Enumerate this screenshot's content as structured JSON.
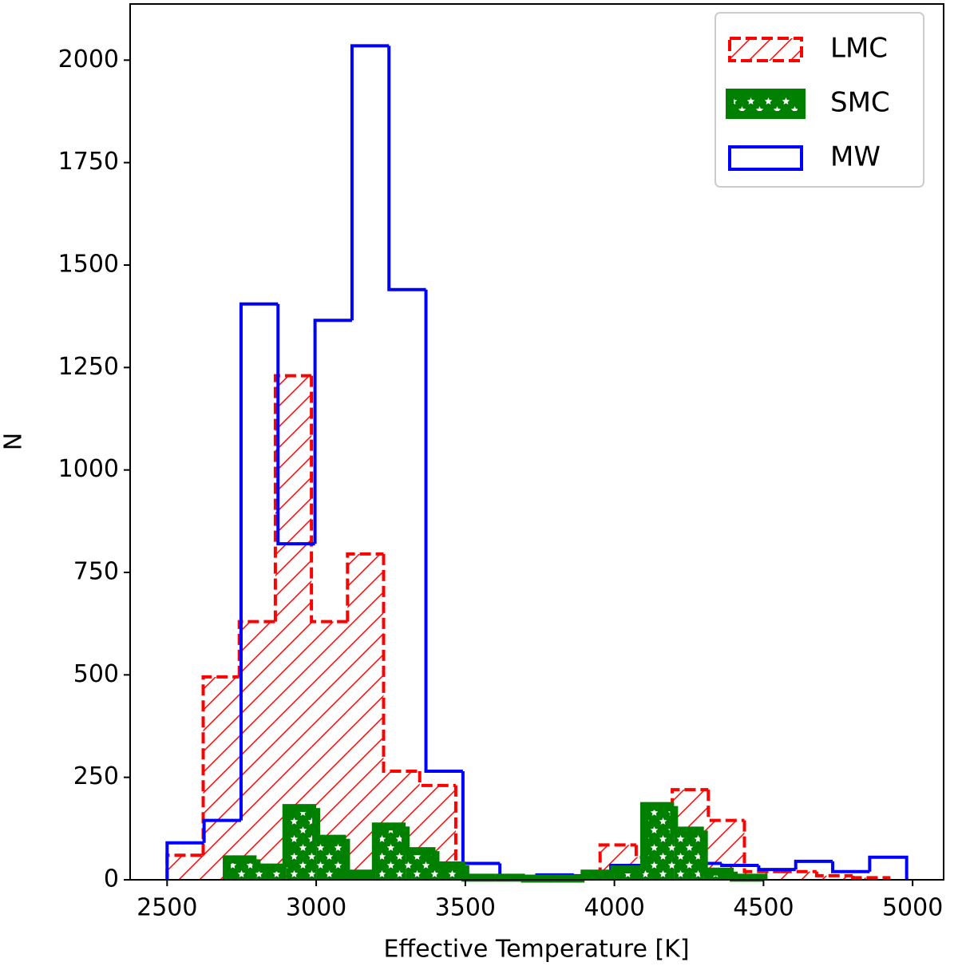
{
  "chart_data": {
    "type": "histogram",
    "xlabel": "Effective Temperature [K]",
    "ylabel": "N",
    "xlim": [
      2376,
      5104
    ],
    "ylim": [
      0,
      2137
    ],
    "xticks": [
      2500,
      3000,
      3500,
      4000,
      4500,
      5000
    ],
    "yticks": [
      0,
      250,
      500,
      750,
      1000,
      1250,
      1500,
      1750,
      2000
    ],
    "legend": "upper right",
    "series": [
      {
        "name": "LMC",
        "color": "#ff0000",
        "hatch": "//",
        "linestyle": "dashed",
        "linewidth": 4,
        "bins": [
          2500,
          2621,
          2742,
          2863,
          2984,
          3105,
          3226,
          3347,
          3468,
          3589,
          3710,
          3831,
          3952,
          4073,
          4194,
          4315,
          4436,
          4557,
          4678,
          4799,
          4920
        ],
        "values": [
          60,
          495,
          630,
          1230,
          630,
          795,
          265,
          230,
          5,
          5,
          5,
          3,
          85,
          55,
          220,
          145,
          20,
          20,
          10,
          5
        ]
      },
      {
        "name": "MW",
        "color": "#0000ff",
        "hatch": "none",
        "linestyle": "solid",
        "linewidth": 4,
        "bins": [
          2500,
          2624,
          2748,
          2872,
          2996,
          3120,
          3244,
          3368,
          3492,
          3616,
          3740,
          3864,
          3988,
          4112,
          4236,
          4360,
          4484,
          4608,
          4732,
          4856,
          4980
        ],
        "values": [
          90,
          145,
          1405,
          820,
          1365,
          2035,
          1440,
          265,
          40,
          5,
          12,
          10,
          35,
          50,
          40,
          35,
          25,
          45,
          20,
          55
        ]
      },
      {
        "name": "SMC",
        "color": "#008000",
        "hatch": "*",
        "linestyle": "solid",
        "linewidth": 10,
        "bins": [
          2700,
          2800,
          2900,
          3000,
          3100,
          3200,
          3300,
          3400,
          3500,
          3600,
          3700,
          3800,
          3900,
          4000,
          4100,
          4200,
          4300,
          4400,
          4500
        ],
        "values": [
          50,
          30,
          175,
          100,
          15,
          130,
          70,
          35,
          5,
          5,
          3,
          3,
          15,
          25,
          180,
          120,
          20,
          5
        ]
      }
    ],
    "legend_order": [
      0,
      2,
      1
    ]
  }
}
